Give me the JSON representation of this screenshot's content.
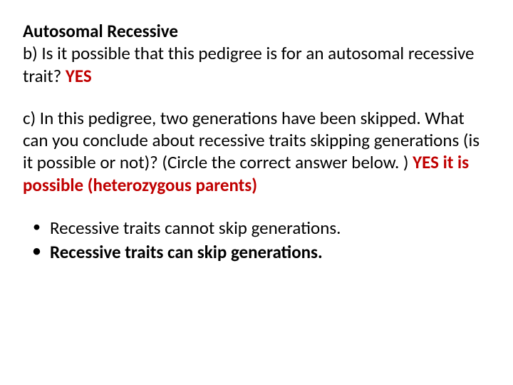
{
  "text_color": "#000000",
  "answer_color": "#c00000",
  "background_color": "#ffffff",
  "font_family": "Calibri, Arial, sans-serif",
  "base_font_size": 25,
  "heading": "Autosomal Recessive",
  "question_b": {
    "text": "b) Is it possible that this pedigree is for an autosomal recessive trait? ",
    "answer": " YES"
  },
  "question_c": {
    "text": "c) In this pedigree, two generations have been skipped. What can you conclude about recessive traits skipping generations (is it possible or not)? (Circle the correct answer below. ) ",
    "answer": " YES it is possible (heterozygous parents)"
  },
  "bullets": [
    {
      "text": "Recessive traits cannot skip generations.",
      "bold": false
    },
    {
      "text": "Recessive traits can skip generations.",
      "bold": true
    }
  ]
}
